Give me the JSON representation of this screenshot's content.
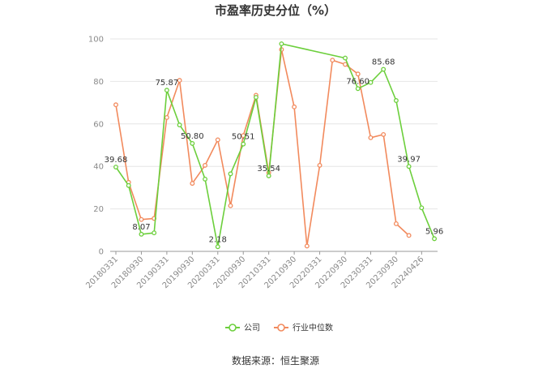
{
  "title": "市盈率历史分位（%）",
  "source": "数据来源：恒生聚源",
  "colors": {
    "company": "#6ccf3c",
    "industry": "#f28a5d",
    "grid": "#e6e6e6",
    "axis": "#999999"
  },
  "chart_data": {
    "type": "line",
    "title": "市盈率历史分位（%）",
    "ylim": [
      0,
      100
    ],
    "yticks": [
      0,
      20,
      40,
      60,
      80,
      100
    ],
    "grid": true,
    "legend_position": "bottom",
    "x_tick_labels": [
      "20180331",
      "20180930",
      "20190331",
      "20190930",
      "20200331",
      "20200930",
      "20210331",
      "20210930",
      "20220331",
      "20220930",
      "20230331",
      "20230930",
      "20240426"
    ],
    "x_tick_positions": [
      0,
      2,
      4,
      6,
      8,
      10,
      12,
      14,
      16,
      18,
      20,
      22,
      24
    ],
    "series": [
      {
        "name": "公司",
        "color": "#6ccf3c",
        "points": [
          [
            0,
            39.68
          ],
          [
            1,
            31.0
          ],
          [
            2,
            8.07
          ],
          [
            3,
            8.7
          ],
          [
            4,
            75.87
          ],
          [
            5,
            59.5
          ],
          [
            6,
            50.8
          ],
          [
            7,
            34.0
          ],
          [
            8,
            2.18
          ],
          [
            9,
            36.5
          ],
          [
            10,
            50.51
          ],
          [
            11,
            72.5
          ],
          [
            12,
            35.54
          ],
          [
            13,
            97.7
          ],
          [
            18,
            91.0
          ],
          [
            19,
            76.6
          ],
          [
            20,
            79.5
          ],
          [
            21,
            85.68
          ],
          [
            22,
            71.0
          ],
          [
            23,
            39.97
          ],
          [
            24,
            20.5
          ],
          [
            25,
            5.96
          ]
        ]
      },
      {
        "name": "行业中位数",
        "color": "#f28a5d",
        "points": [
          [
            0,
            69.0
          ],
          [
            1,
            32.5
          ],
          [
            2,
            15.0
          ],
          [
            3,
            15.5
          ],
          [
            4,
            63.0
          ],
          [
            5,
            80.5
          ],
          [
            6,
            32.0
          ],
          [
            7,
            40.5
          ],
          [
            8,
            52.5
          ],
          [
            9,
            21.5
          ],
          [
            10,
            54.5
          ],
          [
            11,
            73.5
          ],
          [
            12,
            37.0
          ],
          [
            13,
            95.0
          ],
          [
            14,
            68.0
          ],
          [
            15,
            2.5
          ],
          [
            16,
            40.5
          ],
          [
            17,
            90.0
          ],
          [
            18,
            88.0
          ],
          [
            19,
            83.5
          ],
          [
            20,
            53.5
          ],
          [
            21,
            55.0
          ],
          [
            22,
            13.0
          ],
          [
            23,
            7.5
          ]
        ]
      }
    ],
    "data_labels": [
      {
        "series": 0,
        "x": 0,
        "y": 39.68,
        "text": "39.68"
      },
      {
        "series": 0,
        "x": 2,
        "y": 8.07,
        "text": "8.07"
      },
      {
        "series": 0,
        "x": 4,
        "y": 75.87,
        "text": "75.87"
      },
      {
        "series": 0,
        "x": 6,
        "y": 50.8,
        "text": "50.80"
      },
      {
        "series": 0,
        "x": 8,
        "y": 2.18,
        "text": "2.18"
      },
      {
        "series": 0,
        "x": 10,
        "y": 50.51,
        "text": "50.51"
      },
      {
        "series": 0,
        "x": 12,
        "y": 35.54,
        "text": "35.54"
      },
      {
        "series": 0,
        "x": 19,
        "y": 76.6,
        "text": "76.60"
      },
      {
        "series": 0,
        "x": 21,
        "y": 85.68,
        "text": "85.68"
      },
      {
        "series": 0,
        "x": 23,
        "y": 39.97,
        "text": "39.97"
      },
      {
        "series": 0,
        "x": 25,
        "y": 5.96,
        "text": "5.96"
      }
    ]
  }
}
